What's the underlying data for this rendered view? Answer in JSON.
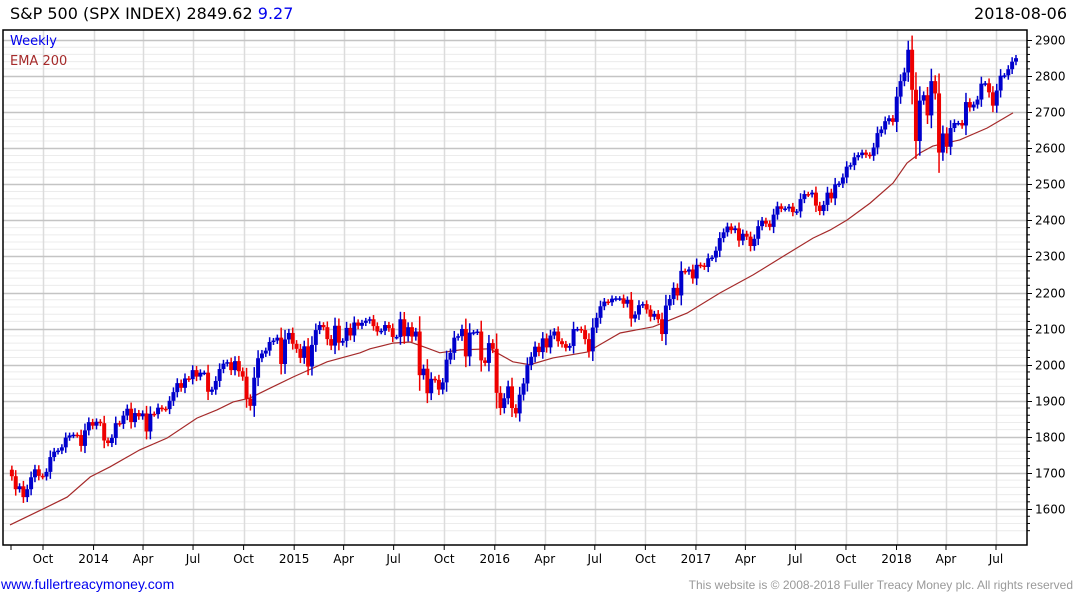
{
  "header": {
    "name": "S&P 500 (SPX INDEX)",
    "last": "2849.62",
    "change": "9.27",
    "date": "2018-08-06"
  },
  "legend": {
    "period": "Weekly",
    "indicator": "EMA 200"
  },
  "footer": {
    "link": "www.fullertreacymoney.com",
    "copyright": "This website is © 2008-2018 Fuller Treacy Money plc. All rights reserved"
  },
  "colors": {
    "up": "#0000cc",
    "down": "#ee0000",
    "ema": "#a52a2a",
    "title_change": "#0000ee"
  },
  "chart_data": {
    "type": "candlestick",
    "title": "S&P 500 (SPX INDEX) Weekly",
    "ylim": [
      1520,
      2920
    ],
    "yticks": [
      1600,
      1700,
      1800,
      1900,
      2000,
      2100,
      2200,
      2300,
      2400,
      2500,
      2600,
      2700,
      2800,
      2900
    ],
    "xticks": [
      {
        "date": "2013-10-01",
        "label": "Oct"
      },
      {
        "date": "2014-01-01",
        "label": "2014"
      },
      {
        "date": "2014-04-01",
        "label": "Apr"
      },
      {
        "date": "2014-07-01",
        "label": "Jul"
      },
      {
        "date": "2014-10-01",
        "label": "Oct"
      },
      {
        "date": "2015-01-01",
        "label": "2015"
      },
      {
        "date": "2015-04-01",
        "label": "Apr"
      },
      {
        "date": "2015-07-01",
        "label": "Jul"
      },
      {
        "date": "2015-10-01",
        "label": "Oct"
      },
      {
        "date": "2016-01-01",
        "label": "2016"
      },
      {
        "date": "2016-04-01",
        "label": "Apr"
      },
      {
        "date": "2016-07-01",
        "label": "Jul"
      },
      {
        "date": "2016-10-01",
        "label": "Oct"
      },
      {
        "date": "2017-01-01",
        "label": "2017"
      },
      {
        "date": "2017-04-01",
        "label": "Apr"
      },
      {
        "date": "2017-07-01",
        "label": "Jul"
      },
      {
        "date": "2017-10-01",
        "label": "Oct"
      },
      {
        "date": "2018-01-01",
        "label": "2018"
      },
      {
        "date": "2018-04-01",
        "label": "Apr"
      },
      {
        "date": "2018-07-01",
        "label": "Jul"
      }
    ],
    "first_week": "2013-08-09",
    "first_open": 1709,
    "weekly_close": [
      1691,
      1655,
      1663,
      1633,
      1655,
      1688,
      1710,
      1692,
      1690,
      1703,
      1744,
      1759,
      1762,
      1771,
      1798,
      1804,
      1806,
      1805,
      1775,
      1818,
      1841,
      1831,
      1842,
      1838,
      1790,
      1783,
      1797,
      1838,
      1836,
      1859,
      1878,
      1841,
      1866,
      1857,
      1865,
      1815,
      1864,
      1863,
      1881,
      1878,
      1877,
      1900,
      1924,
      1949,
      1936,
      1962,
      1960,
      1985,
      1967,
      1978,
      1978,
      1925,
      1931,
      1955,
      1988,
      2003,
      2007,
      1985,
      2010,
      1982,
      1967,
      1906,
      1886,
      1964,
      2018,
      2031,
      2039,
      2063,
      2067,
      2075,
      2002,
      2070,
      2088,
      2058,
      2044,
      2019,
      2051,
      1995,
      2055,
      2096,
      2110,
      2104,
      2071,
      2053,
      2108,
      2061,
      2066,
      2102,
      2081,
      2117,
      2108,
      2116,
      2122,
      2126,
      2107,
      2092,
      2094,
      2110,
      2101,
      2077,
      2077,
      2126,
      2079,
      2104,
      2078,
      2092,
      1971,
      1989,
      1921,
      1961,
      1958,
      1931,
      1951,
      2014,
      2033,
      2075,
      2079,
      2099,
      2023,
      2089,
      2090,
      2092,
      2012,
      2005,
      2060,
      2044,
      1922,
      1880,
      1907,
      1940,
      1880,
      1865,
      1917,
      1948,
      1999,
      2022,
      2050,
      2035,
      2073,
      2048,
      2081,
      2092,
      2065,
      2057,
      2047,
      2052,
      2099,
      2099,
      2096,
      2071,
      2037,
      2103,
      2130,
      2162,
      2175,
      2173,
      2183,
      2184,
      2184,
      2169,
      2180,
      2128,
      2139,
      2165,
      2168,
      2153,
      2133,
      2141,
      2126,
      2085,
      2164,
      2182,
      2213,
      2192,
      2260,
      2258,
      2264,
      2239,
      2277,
      2275,
      2271,
      2295,
      2297,
      2316,
      2351,
      2367,
      2383,
      2373,
      2378,
      2344,
      2363,
      2355,
      2329,
      2349,
      2384,
      2399,
      2391,
      2382,
      2416,
      2439,
      2432,
      2433,
      2438,
      2423,
      2425,
      2459,
      2473,
      2472,
      2477,
      2441,
      2426,
      2443,
      2477,
      2461,
      2500,
      2502,
      2519,
      2549,
      2553,
      2575,
      2581,
      2588,
      2582,
      2579,
      2602,
      2642,
      2652,
      2675,
      2683,
      2673,
      2743,
      2786,
      2810,
      2873,
      2762,
      2620,
      2732,
      2747,
      2691,
      2786,
      2752,
      2588,
      2641,
      2604,
      2656,
      2670,
      2670,
      2663,
      2728,
      2713,
      2721,
      2735,
      2779,
      2780,
      2755,
      2718,
      2760,
      2801,
      2802,
      2819,
      2840,
      2849.62
    ],
    "ema200": [
      [
        "2013-08-02",
        1556
      ],
      [
        "2013-09-27",
        1597
      ],
      [
        "2013-11-14",
        1633
      ],
      [
        "2013-12-26",
        1689
      ],
      [
        "2014-01-31",
        1717
      ],
      [
        "2014-03-26",
        1764
      ],
      [
        "2014-05-15",
        1797
      ],
      [
        "2014-07-08",
        1852
      ],
      [
        "2014-08-14",
        1875
      ],
      [
        "2014-09-12",
        1897
      ],
      [
        "2014-10-13",
        1908
      ],
      [
        "2014-11-18",
        1935
      ],
      [
        "2014-12-30",
        1966
      ],
      [
        "2015-03-02",
        2008
      ],
      [
        "2015-05-01",
        2033
      ],
      [
        "2015-05-19",
        2044
      ],
      [
        "2015-06-30",
        2060
      ],
      [
        "2015-07-31",
        2063
      ],
      [
        "2015-08-31",
        2046
      ],
      [
        "2015-09-23",
        2033
      ],
      [
        "2015-10-30",
        2041
      ],
      [
        "2015-12-23",
        2044
      ],
      [
        "2016-02-03",
        2008
      ],
      [
        "2016-03-05",
        2000
      ],
      [
        "2016-04-16",
        2019
      ],
      [
        "2016-06-17",
        2035
      ],
      [
        "2016-08-16",
        2088
      ],
      [
        "2016-10-15",
        2105
      ],
      [
        "2016-12-16",
        2143
      ],
      [
        "2017-02-14",
        2199
      ],
      [
        "2017-04-15",
        2249
      ],
      [
        "2017-06-21",
        2312
      ],
      [
        "2017-08-02",
        2351
      ],
      [
        "2017-09-02",
        2373
      ],
      [
        "2017-10-03",
        2401
      ],
      [
        "2017-11-14",
        2448
      ],
      [
        "2017-12-26",
        2504
      ],
      [
        "2018-01-20",
        2559
      ],
      [
        "2018-02-13",
        2587
      ],
      [
        "2018-03-08",
        2606
      ],
      [
        "2018-04-26",
        2623
      ],
      [
        "2018-06-15",
        2656
      ],
      [
        "2018-08-01",
        2698
      ]
    ]
  }
}
